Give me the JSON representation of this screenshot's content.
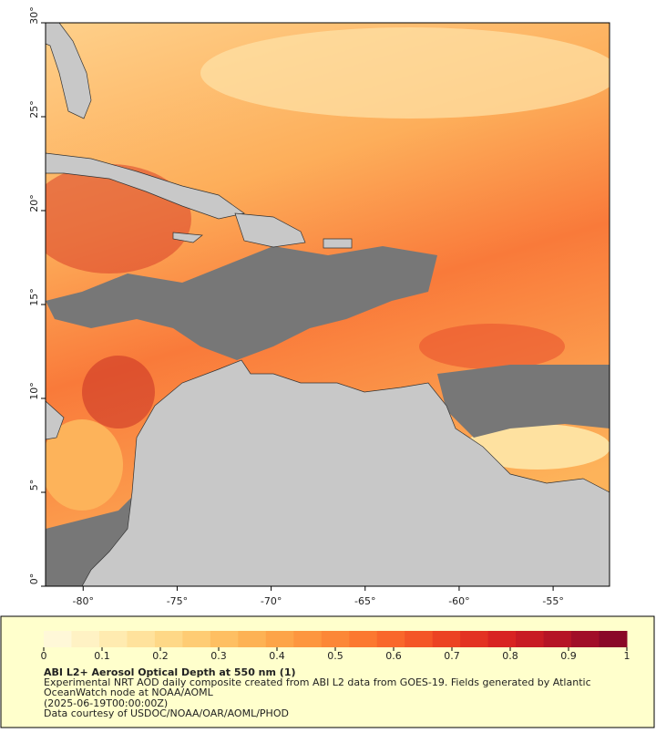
{
  "map": {
    "xlim": [
      -82,
      -52
    ],
    "ylim": [
      0,
      30
    ],
    "xticks": [
      {
        "value": -80,
        "label": "-80°"
      },
      {
        "value": -75,
        "label": "-75°"
      },
      {
        "value": -70,
        "label": "-70°"
      },
      {
        "value": -65,
        "label": "-65°"
      },
      {
        "value": -60,
        "label": "-60°"
      },
      {
        "value": -55,
        "label": "-55°"
      }
    ],
    "yticks": [
      {
        "value": 0,
        "label": "0°"
      },
      {
        "value": 5,
        "label": "5°"
      },
      {
        "value": 10,
        "label": "10°"
      },
      {
        "value": 15,
        "label": "15°"
      },
      {
        "value": 20,
        "label": "20°"
      },
      {
        "value": 25,
        "label": "25°"
      },
      {
        "value": 30,
        "label": "30°"
      }
    ]
  },
  "colorbar": {
    "lim": [
      0,
      1
    ],
    "ticks": [
      0,
      0.1,
      0.2,
      0.3,
      0.4,
      0.5,
      0.6,
      0.7,
      0.8,
      0.9,
      1
    ],
    "colors": [
      "#fff8d8",
      "#fff2c4",
      "#ffebb0",
      "#ffe29c",
      "#fed887",
      "#fecc74",
      "#febf62",
      "#fdb254",
      "#fda448",
      "#fd963f",
      "#fc8737",
      "#fc7830",
      "#f9672b",
      "#f45627",
      "#ec4323",
      "#e33222",
      "#d82322",
      "#c81b24",
      "#b51426",
      "#a10e28",
      "#8a0828"
    ]
  },
  "caption": {
    "title": "ABI L2+ Aerosol Optical Depth at 550 nm (1)",
    "lines": [
      "Experimental NRT AOD daily composite created from ABI L2 data from GOES-19. Fields generated by Atlantic",
      "OceanWatch node at NOAA/AOML",
      "(2025-06-19T00:00:00Z)",
      "Data courtesy of USDOC/NOAA/OAR/AOML/PHOD"
    ]
  }
}
